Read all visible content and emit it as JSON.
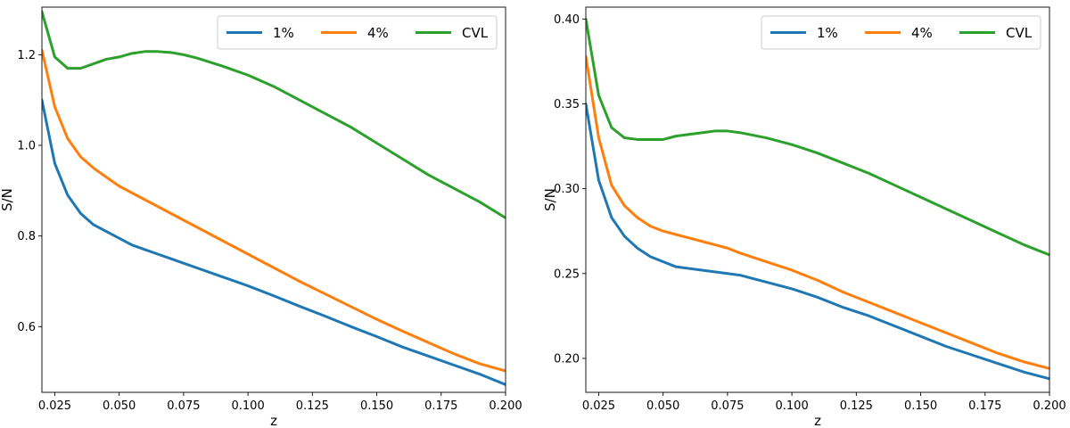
{
  "chart_data": [
    {
      "type": "line",
      "xlabel": "z",
      "ylabel": "S/N",
      "xlim": [
        0.02,
        0.2
      ],
      "ylim": [
        0.455,
        1.305
      ],
      "xticks": [
        "0.025",
        "0.050",
        "0.075",
        "0.100",
        "0.125",
        "0.150",
        "0.175",
        "0.200"
      ],
      "yticks": [
        "0.6",
        "0.8",
        "1.0",
        "1.2"
      ],
      "legend_position": "top-right",
      "grid": false,
      "x": [
        0.02,
        0.025,
        0.03,
        0.035,
        0.04,
        0.045,
        0.05,
        0.055,
        0.06,
        0.065,
        0.07,
        0.075,
        0.08,
        0.09,
        0.1,
        0.11,
        0.12,
        0.13,
        0.14,
        0.15,
        0.16,
        0.17,
        0.18,
        0.19,
        0.2
      ],
      "series": [
        {
          "name": "1%",
          "color": "#1f77b4",
          "values": [
            1.1,
            0.96,
            0.89,
            0.85,
            0.825,
            0.81,
            0.795,
            0.78,
            0.77,
            0.76,
            0.75,
            0.74,
            0.73,
            0.71,
            0.69,
            0.668,
            0.645,
            0.623,
            0.6,
            0.578,
            0.555,
            0.535,
            0.515,
            0.495,
            0.472
          ]
        },
        {
          "name": "4%",
          "color": "#ff7f0e",
          "values": [
            1.21,
            1.085,
            1.015,
            0.975,
            0.95,
            0.93,
            0.91,
            0.895,
            0.88,
            0.865,
            0.85,
            0.835,
            0.82,
            0.79,
            0.76,
            0.73,
            0.7,
            0.672,
            0.644,
            0.616,
            0.59,
            0.565,
            0.54,
            0.518,
            0.502
          ]
        },
        {
          "name": "CVL",
          "color": "#2ca02c",
          "values": [
            1.295,
            1.195,
            1.17,
            1.17,
            1.18,
            1.19,
            1.195,
            1.203,
            1.207,
            1.207,
            1.205,
            1.2,
            1.193,
            1.175,
            1.155,
            1.13,
            1.1,
            1.07,
            1.04,
            1.005,
            0.97,
            0.935,
            0.905,
            0.875,
            0.84
          ]
        }
      ]
    },
    {
      "type": "line",
      "xlabel": "z",
      "ylabel": "S/N",
      "xlim": [
        0.02,
        0.2
      ],
      "ylim": [
        0.18,
        0.407
      ],
      "xticks": [
        "0.025",
        "0.050",
        "0.075",
        "0.100",
        "0.125",
        "0.150",
        "0.175",
        "0.200"
      ],
      "yticks": [
        "0.20",
        "0.25",
        "0.30",
        "0.35",
        "0.40"
      ],
      "legend_position": "top-right",
      "grid": false,
      "x": [
        0.02,
        0.025,
        0.03,
        0.035,
        0.04,
        0.045,
        0.05,
        0.055,
        0.06,
        0.065,
        0.07,
        0.075,
        0.08,
        0.09,
        0.1,
        0.11,
        0.12,
        0.13,
        0.14,
        0.15,
        0.16,
        0.17,
        0.18,
        0.19,
        0.2
      ],
      "series": [
        {
          "name": "1%",
          "color": "#1f77b4",
          "values": [
            0.35,
            0.305,
            0.283,
            0.272,
            0.265,
            0.26,
            0.257,
            0.254,
            0.253,
            0.252,
            0.251,
            0.25,
            0.249,
            0.245,
            0.241,
            0.236,
            0.23,
            0.225,
            0.219,
            0.213,
            0.207,
            0.202,
            0.197,
            0.192,
            0.188
          ]
        },
        {
          "name": "4%",
          "color": "#ff7f0e",
          "values": [
            0.378,
            0.33,
            0.302,
            0.29,
            0.283,
            0.278,
            0.275,
            0.273,
            0.271,
            0.269,
            0.267,
            0.265,
            0.262,
            0.257,
            0.252,
            0.246,
            0.239,
            0.233,
            0.227,
            0.221,
            0.215,
            0.209,
            0.203,
            0.198,
            0.194
          ]
        },
        {
          "name": "CVL",
          "color": "#2ca02c",
          "values": [
            0.4,
            0.355,
            0.336,
            0.33,
            0.329,
            0.329,
            0.329,
            0.331,
            0.332,
            0.333,
            0.334,
            0.334,
            0.333,
            0.33,
            0.326,
            0.321,
            0.315,
            0.309,
            0.302,
            0.295,
            0.288,
            0.281,
            0.274,
            0.267,
            0.261
          ]
        }
      ]
    }
  ]
}
